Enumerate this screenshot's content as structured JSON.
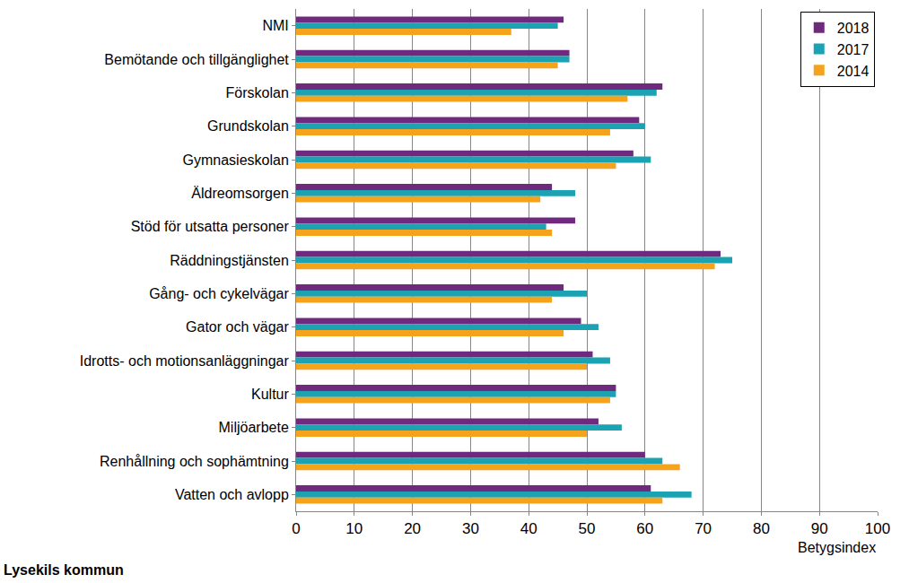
{
  "chart_data": {
    "type": "bar",
    "orientation": "horizontal",
    "title": "Lysekils kommun",
    "xlabel": "Betygsindex",
    "categories": [
      "NMI",
      "Bemötande och tillgänglighet",
      "Förskolan",
      "Grundskolan",
      "Gymnasieskolan",
      "Äldreomsorgen",
      "Stöd för utsatta personer",
      "Räddningstjänsten",
      "Gång- och cykelvägar",
      "Gator och vägar",
      "Idrotts- och motionsanläggningar",
      "Kultur",
      "Miljöarbete",
      "Renhållning och sophämtning",
      "Vatten och avlopp"
    ],
    "series": [
      {
        "name": "2018",
        "color": "#6f2a7d",
        "values": [
          46,
          47,
          63,
          59,
          58,
          44,
          48,
          73,
          46,
          49,
          51,
          55,
          52,
          60,
          61
        ]
      },
      {
        "name": "2017",
        "color": "#1ba3b4",
        "values": [
          45,
          47,
          62,
          60,
          61,
          48,
          43,
          75,
          50,
          52,
          54,
          55,
          56,
          63,
          68
        ]
      },
      {
        "name": "2014",
        "color": "#f5a31c",
        "values": [
          37,
          45,
          57,
          54,
          55,
          42,
          44,
          72,
          44,
          46,
          50,
          54,
          50,
          66,
          63
        ]
      }
    ],
    "xlim": [
      0,
      100
    ],
    "xticks": [
      0,
      10,
      20,
      30,
      40,
      50,
      60,
      70,
      80,
      90,
      100
    ],
    "grid": true,
    "legend": "top-right"
  }
}
